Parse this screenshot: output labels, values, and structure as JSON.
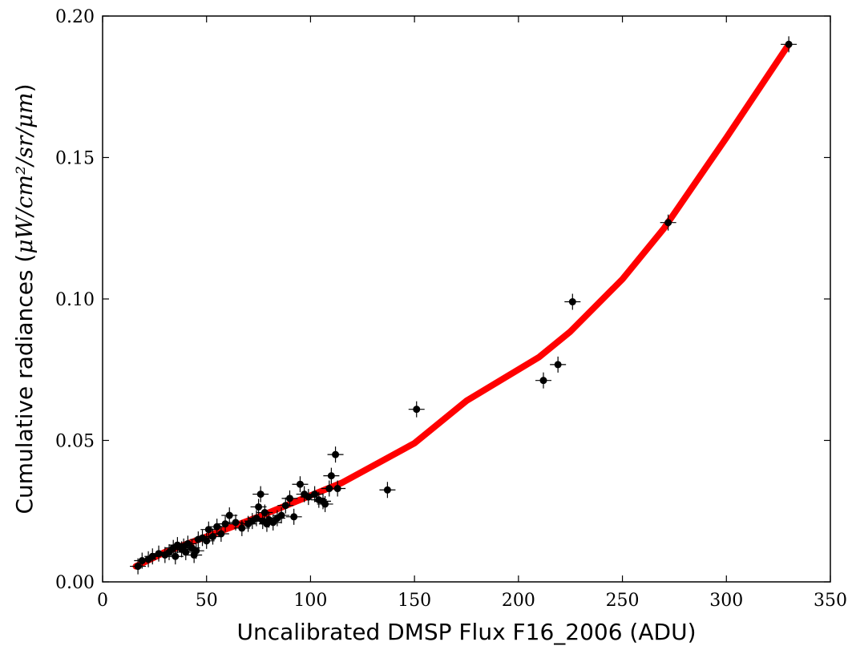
{
  "chart_data": {
    "type": "scatter",
    "title": "",
    "xlabel": "Uncalibrated DMSP Flux F16_2006 (ADU)",
    "ylabel": {
      "text": "Cumulative radiances (",
      "unit": "μW/cm²/sr/μm",
      "close": ")"
    },
    "xlim": [
      0,
      350
    ],
    "ylim": [
      0.0,
      0.2
    ],
    "xticks": [
      0,
      50,
      100,
      150,
      200,
      250,
      300,
      350
    ],
    "yticks": [
      0.0,
      0.05,
      0.1,
      0.15,
      0.2
    ],
    "xtick_labels": [
      "0",
      "50",
      "100",
      "150",
      "200",
      "250",
      "300",
      "350"
    ],
    "ytick_labels": [
      "0.00",
      "0.05",
      "0.10",
      "0.15",
      "0.20"
    ],
    "grid": false,
    "colors": {
      "points": "#000000",
      "fit_line": "#ff0000"
    },
    "series": [
      {
        "type": "scatter",
        "marker": "point-with-errorbars",
        "points": [
          [
            17,
            0.0055
          ],
          [
            19,
            0.0075
          ],
          [
            22,
            0.008
          ],
          [
            24,
            0.009
          ],
          [
            27,
            0.01
          ],
          [
            30,
            0.0095
          ],
          [
            32,
            0.0105
          ],
          [
            34,
            0.012
          ],
          [
            35,
            0.009
          ],
          [
            36,
            0.013
          ],
          [
            38,
            0.0115
          ],
          [
            39,
            0.0125
          ],
          [
            40,
            0.0105
          ],
          [
            41,
            0.0135
          ],
          [
            43,
            0.012
          ],
          [
            44,
            0.0095
          ],
          [
            45,
            0.011
          ],
          [
            46,
            0.015
          ],
          [
            48,
            0.0155
          ],
          [
            50,
            0.0145
          ],
          [
            51,
            0.0185
          ],
          [
            53,
            0.016
          ],
          [
            55,
            0.0195
          ],
          [
            57,
            0.017
          ],
          [
            59,
            0.0205
          ],
          [
            61,
            0.0235
          ],
          [
            64,
            0.021
          ],
          [
            67,
            0.019
          ],
          [
            70,
            0.0205
          ],
          [
            72,
            0.0215
          ],
          [
            74,
            0.0225
          ],
          [
            75,
            0.0265
          ],
          [
            76,
            0.031
          ],
          [
            77,
            0.0215
          ],
          [
            78,
            0.0245
          ],
          [
            79,
            0.0205
          ],
          [
            80,
            0.022
          ],
          [
            82,
            0.021
          ],
          [
            84,
            0.0225
          ],
          [
            86,
            0.0235
          ],
          [
            88,
            0.027
          ],
          [
            90,
            0.0295
          ],
          [
            92,
            0.023
          ],
          [
            95,
            0.0345
          ],
          [
            97,
            0.031
          ],
          [
            99,
            0.03
          ],
          [
            102,
            0.031
          ],
          [
            104,
            0.029
          ],
          [
            106,
            0.0285
          ],
          [
            107,
            0.0275
          ],
          [
            109,
            0.033
          ],
          [
            110,
            0.0375
          ],
          [
            112,
            0.045
          ],
          [
            113,
            0.033
          ],
          [
            137,
            0.0325
          ],
          [
            151,
            0.061
          ],
          [
            212,
            0.0712
          ],
          [
            219,
            0.0768
          ],
          [
            226,
            0.099
          ],
          [
            272,
            0.127
          ],
          [
            330,
            0.19
          ]
        ]
      },
      {
        "type": "line",
        "points": [
          [
            16,
            0.0055
          ],
          [
            30,
            0.0105
          ],
          [
            50,
            0.016
          ],
          [
            75,
            0.023
          ],
          [
            100,
            0.0305
          ],
          [
            115,
            0.035
          ],
          [
            135,
            0.043
          ],
          [
            150,
            0.049
          ],
          [
            175,
            0.064
          ],
          [
            210,
            0.0795
          ],
          [
            225,
            0.0885
          ],
          [
            250,
            0.107
          ],
          [
            270,
            0.125
          ],
          [
            300,
            0.157
          ],
          [
            330,
            0.19
          ]
        ]
      }
    ]
  }
}
